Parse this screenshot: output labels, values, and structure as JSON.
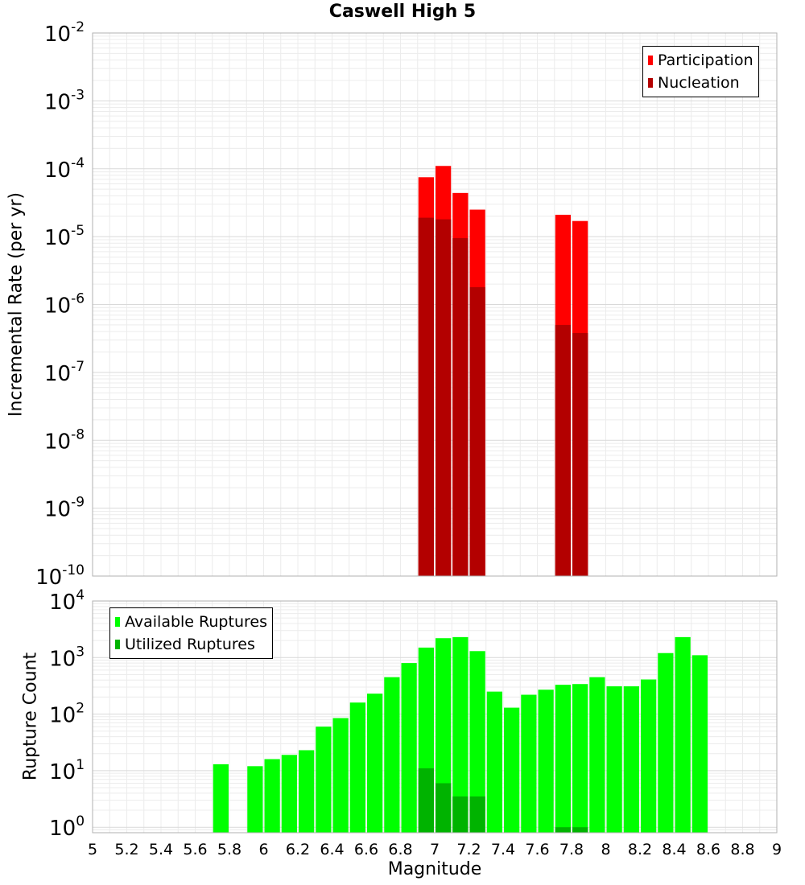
{
  "chart_data": [
    {
      "type": "bar",
      "title": "Caswell High 5",
      "ylabel": "Incremental Rate (per yr)",
      "xlabel": "",
      "xlim": [
        5,
        9
      ],
      "ylim": [
        1e-10,
        0.01
      ],
      "y_scale": "log",
      "grid": true,
      "legend_position": "top-right",
      "y_ticks": [
        {
          "base": "10",
          "exp": "-10",
          "value": 1e-10
        },
        {
          "base": "10",
          "exp": "-9",
          "value": 1e-09
        },
        {
          "base": "10",
          "exp": "-8",
          "value": 1e-08
        },
        {
          "base": "10",
          "exp": "-7",
          "value": 1e-07
        },
        {
          "base": "10",
          "exp": "-6",
          "value": 1e-06
        },
        {
          "base": "10",
          "exp": "-5",
          "value": 1e-05
        },
        {
          "base": "10",
          "exp": "-4",
          "value": 0.0001
        },
        {
          "base": "10",
          "exp": "-3",
          "value": 0.001
        },
        {
          "base": "10",
          "exp": "-2",
          "value": 0.01
        }
      ],
      "x": [
        6.95,
        7.05,
        7.15,
        7.25,
        7.75,
        7.85
      ],
      "series": [
        {
          "name": "Participation",
          "color": "#ff0000",
          "values": [
            7.5e-05,
            0.00011,
            4.4e-05,
            2.5e-05,
            2.1e-05,
            1.7e-05
          ]
        },
        {
          "name": "Nucleation",
          "color": "#b30000",
          "values": [
            1.9e-05,
            1.8e-05,
            9.5e-06,
            1.8e-06,
            5e-07,
            3.8e-07
          ]
        }
      ]
    },
    {
      "type": "bar",
      "title": "",
      "ylabel": "Rupture Count",
      "xlabel": "Magnitude",
      "xlim": [
        5,
        9
      ],
      "ylim": [
        0.8,
        10000
      ],
      "y_scale": "log",
      "grid": true,
      "legend_position": "top-left",
      "x_ticks": [
        "5",
        "5.2",
        "5.4",
        "5.6",
        "5.8",
        "6",
        "6.2",
        "6.4",
        "6.6",
        "6.8",
        "7",
        "7.2",
        "7.4",
        "7.6",
        "7.8",
        "8",
        "8.2",
        "8.4",
        "8.6",
        "8.8",
        "9"
      ],
      "y_ticks": [
        {
          "base": "10",
          "exp": "0",
          "value": 1
        },
        {
          "base": "10",
          "exp": "1",
          "value": 10
        },
        {
          "base": "10",
          "exp": "2",
          "value": 100
        },
        {
          "base": "10",
          "exp": "3",
          "value": 1000
        },
        {
          "base": "10",
          "exp": "4",
          "value": 10000
        }
      ],
      "x": [
        5.75,
        5.95,
        6.05,
        6.15,
        6.25,
        6.35,
        6.45,
        6.55,
        6.65,
        6.75,
        6.85,
        6.95,
        7.05,
        7.15,
        7.25,
        7.35,
        7.45,
        7.55,
        7.65,
        7.75,
        7.85,
        7.95,
        8.05,
        8.15,
        8.25,
        8.35,
        8.45,
        8.55
      ],
      "series": [
        {
          "name": "Available Ruptures",
          "color": "#00ff00",
          "values": [
            13,
            12,
            16,
            19,
            23,
            60,
            85,
            160,
            230,
            450,
            800,
            1500,
            2200,
            2300,
            1300,
            250,
            130,
            220,
            270,
            330,
            340,
            450,
            310,
            310,
            410,
            1200,
            2300,
            1100
          ]
        },
        {
          "name": "Utilized Ruptures",
          "color": "#00b300",
          "values": [
            0,
            0,
            0,
            0,
            0,
            0,
            0,
            0,
            0,
            0,
            0,
            11,
            6,
            3.5,
            3.5,
            0,
            0,
            0,
            0,
            1,
            1,
            0,
            0,
            0,
            0,
            0,
            0,
            0
          ]
        }
      ]
    }
  ]
}
